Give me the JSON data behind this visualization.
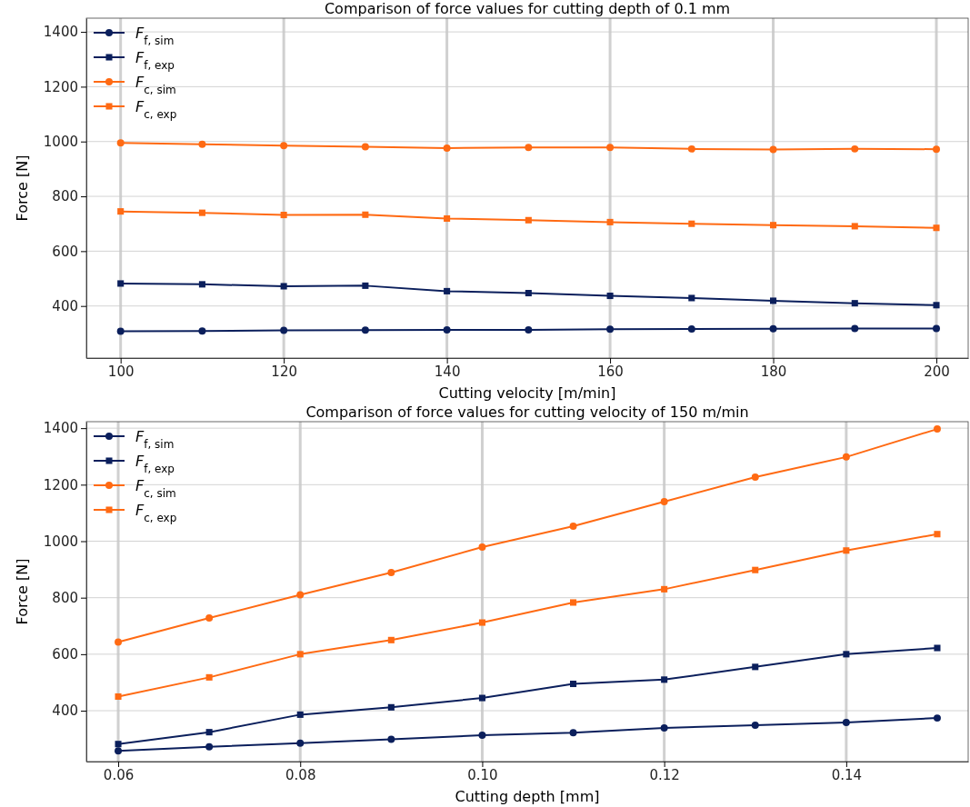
{
  "chart_data": [
    {
      "type": "line",
      "title": "Comparison of force values for cutting depth of 0.1 mm",
      "xlabel": "Cutting velocity [m/min]",
      "ylabel": "Force [N]",
      "x": [
        100,
        110,
        120,
        130,
        140,
        150,
        160,
        170,
        180,
        190,
        200
      ],
      "xlim": [
        95.8,
        203.9
      ],
      "xticks": [
        100,
        120,
        140,
        160,
        180,
        200
      ],
      "ylim": [
        210,
        1450
      ],
      "yticks": [
        400,
        600,
        800,
        1000,
        1200,
        1400
      ],
      "grid": true,
      "legend": "top left",
      "line_style": "solid",
      "series": [
        {
          "name": "F$_{f, sim}$",
          "color": "#0b1f5c",
          "marker": "circle",
          "values": [
            308,
            309,
            311,
            312,
            313,
            313,
            315,
            316,
            317,
            318,
            318
          ]
        },
        {
          "name": "F$_{f, exp}$",
          "color": "#0b1f5c",
          "marker": "square",
          "values": [
            482,
            479,
            472,
            474,
            454,
            447,
            437,
            429,
            419,
            410,
            403
          ]
        },
        {
          "name": "F$_{c, sim}$",
          "color": "#ff6a13",
          "marker": "circle",
          "values": [
            995,
            990,
            985,
            981,
            976,
            978,
            978,
            973,
            971,
            973,
            972
          ]
        },
        {
          "name": "F$_{c, exp}$",
          "color": "#ff6a13",
          "marker": "square",
          "values": [
            745,
            740,
            732,
            733,
            719,
            713,
            706,
            700,
            695,
            691,
            685
          ]
        }
      ]
    },
    {
      "type": "line",
      "title": "Comparison of force values for cutting velocity of 150 m/min",
      "xlabel": "Cutting depth [mm]",
      "ylabel": "Force [N]",
      "x": [
        0.06,
        0.07,
        0.08,
        0.09,
        0.1,
        0.11,
        0.12,
        0.13,
        0.14,
        0.15
      ],
      "xlim": [
        0.0565,
        0.1534
      ],
      "xticks": [
        {
          "value": 0.06,
          "label": "0.06"
        },
        {
          "value": 0.08,
          "label": "0.08"
        },
        {
          "value": 0.1,
          "label": "0.10"
        },
        {
          "value": 0.12,
          "label": "0.12"
        },
        {
          "value": 0.14,
          "label": "0.14"
        }
      ],
      "ylim": [
        220,
        1423
      ],
      "yticks": [
        400,
        600,
        800,
        1000,
        1200,
        1400
      ],
      "grid": true,
      "legend": "top left",
      "line_style": "solid",
      "series": [
        {
          "name": "F$_{f, sim}$",
          "color": "#0b1f5c",
          "marker": "circle",
          "values": [
            258,
            272,
            285,
            299,
            313,
            322,
            339,
            349,
            358,
            374
          ]
        },
        {
          "name": "F$_{f, exp}$",
          "color": "#0b1f5c",
          "marker": "square",
          "values": [
            282,
            324,
            386,
            412,
            445,
            495,
            510,
            555,
            600,
            622
          ]
        },
        {
          "name": "F$_{c, sim}$",
          "color": "#ff6a13",
          "marker": "circle",
          "values": [
            643,
            728,
            810,
            889,
            979,
            1053,
            1140,
            1227,
            1298,
            1397
          ]
        },
        {
          "name": "F$_{c, exp}$",
          "color": "#ff6a13",
          "marker": "square",
          "values": [
            450,
            518,
            600,
            650,
            712,
            783,
            830,
            898,
            967,
            1025
          ]
        }
      ]
    }
  ]
}
